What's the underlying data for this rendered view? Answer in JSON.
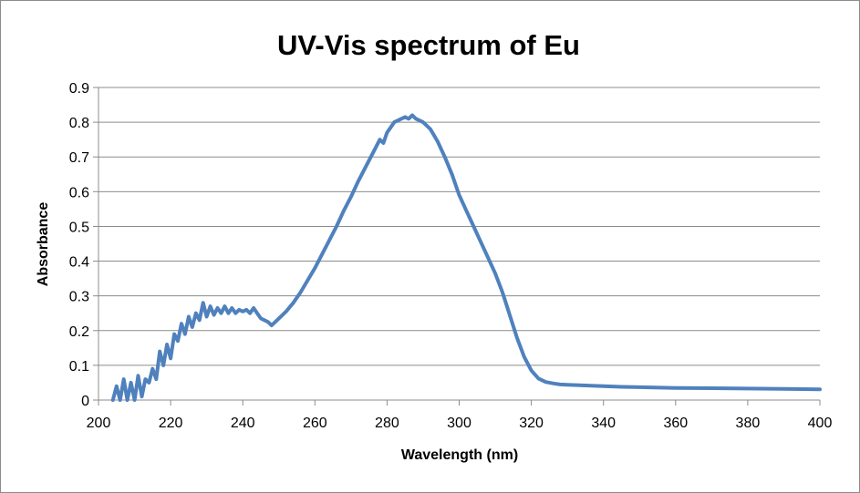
{
  "chart_data": {
    "type": "line",
    "title": "UV-Vis spectrum of Eu",
    "xlabel": "Wavelength (nm)",
    "ylabel": "Absorbance",
    "xlim": [
      200,
      400
    ],
    "ylim": [
      0,
      0.9
    ],
    "x_ticks": [
      "200",
      "220",
      "240",
      "260",
      "280",
      "300",
      "320",
      "340",
      "360",
      "380",
      "400"
    ],
    "y_ticks": [
      "0",
      "0.1",
      "0.2",
      "0.3",
      "0.4",
      "0.5",
      "0.6",
      "0.7",
      "0.8",
      "0.9"
    ],
    "grid": "horizontal",
    "legend": "none",
    "series_color": "#4f81bd",
    "series": [
      {
        "x": [
          204,
          205,
          206,
          207,
          208,
          209,
          210,
          211,
          212,
          213,
          214,
          215,
          216,
          217,
          218,
          219,
          220,
          221,
          222,
          223,
          224,
          225,
          226,
          227,
          228,
          229,
          230,
          231,
          232,
          233,
          234,
          235,
          236,
          237,
          238,
          239,
          240,
          241,
          242,
          243,
          244,
          245,
          246,
          247,
          248,
          249,
          250,
          252,
          254,
          256,
          258,
          260,
          262,
          264,
          266,
          268,
          270,
          272,
          274,
          276,
          278,
          279,
          280,
          281,
          282,
          283,
          284,
          285,
          286,
          287,
          288,
          289,
          290,
          292,
          294,
          296,
          298,
          300,
          302,
          304,
          306,
          308,
          310,
          312,
          314,
          316,
          318,
          320,
          322,
          324,
          326,
          328,
          330,
          335,
          340,
          345,
          350,
          360,
          370,
          380,
          390,
          400
        ],
        "y": [
          0.0,
          0.04,
          0.0,
          0.06,
          0.0,
          0.05,
          0.0,
          0.07,
          0.01,
          0.06,
          0.05,
          0.09,
          0.06,
          0.14,
          0.1,
          0.16,
          0.12,
          0.19,
          0.17,
          0.22,
          0.19,
          0.24,
          0.21,
          0.25,
          0.23,
          0.28,
          0.24,
          0.27,
          0.245,
          0.265,
          0.25,
          0.27,
          0.25,
          0.265,
          0.25,
          0.26,
          0.255,
          0.26,
          0.25,
          0.265,
          0.25,
          0.235,
          0.23,
          0.225,
          0.215,
          0.225,
          0.235,
          0.255,
          0.28,
          0.31,
          0.345,
          0.38,
          0.42,
          0.46,
          0.5,
          0.545,
          0.585,
          0.63,
          0.67,
          0.71,
          0.75,
          0.74,
          0.77,
          0.785,
          0.8,
          0.805,
          0.81,
          0.815,
          0.81,
          0.82,
          0.81,
          0.805,
          0.8,
          0.78,
          0.745,
          0.7,
          0.65,
          0.59,
          0.545,
          0.5,
          0.455,
          0.41,
          0.365,
          0.31,
          0.245,
          0.18,
          0.125,
          0.085,
          0.062,
          0.052,
          0.048,
          0.045,
          0.044,
          0.042,
          0.04,
          0.038,
          0.037,
          0.035,
          0.034,
          0.033,
          0.032,
          0.031
        ]
      }
    ]
  }
}
